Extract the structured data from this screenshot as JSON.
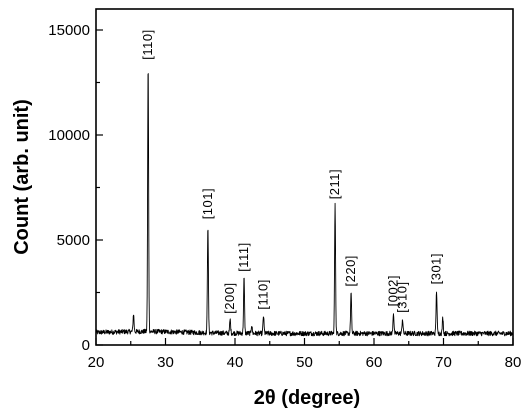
{
  "chart_data": {
    "type": "line",
    "xlabel": "2θ (degree)",
    "ylabel": "Count (arb. unit)",
    "xlim": [
      20,
      80
    ],
    "ylim": [
      0,
      16000
    ],
    "x_ticks": [
      20,
      30,
      40,
      50,
      60,
      70,
      80
    ],
    "x_tick_labels": [
      "20",
      "30",
      "40",
      "50",
      "60",
      "70",
      "80"
    ],
    "y_ticks": [
      0,
      5000,
      10000,
      15000
    ],
    "y_tick_labels": [
      "0",
      "5000",
      "10000",
      "15000"
    ],
    "grid": false,
    "legend": "none",
    "series_color": "#000000",
    "baseline": 550,
    "peaks": [
      {
        "x": 25.4,
        "y": 1400,
        "label": ""
      },
      {
        "x": 27.5,
        "y": 13300,
        "label": "[110]"
      },
      {
        "x": 36.1,
        "y": 5700,
        "label": "[101]"
      },
      {
        "x": 39.3,
        "y": 1200,
        "label": "[200]"
      },
      {
        "x": 41.3,
        "y": 3200,
        "label": "[111]"
      },
      {
        "x": 42.4,
        "y": 950,
        "label": ""
      },
      {
        "x": 44.1,
        "y": 1400,
        "label": "[110]"
      },
      {
        "x": 54.4,
        "y": 6650,
        "label": "[211]"
      },
      {
        "x": 56.7,
        "y": 2500,
        "label": "[220]"
      },
      {
        "x": 62.8,
        "y": 1550,
        "label": "[002]"
      },
      {
        "x": 64.1,
        "y": 1250,
        "label": "[310]"
      },
      {
        "x": 69.0,
        "y": 2600,
        "label": "[301]"
      },
      {
        "x": 69.9,
        "y": 1300,
        "label": ""
      }
    ]
  }
}
